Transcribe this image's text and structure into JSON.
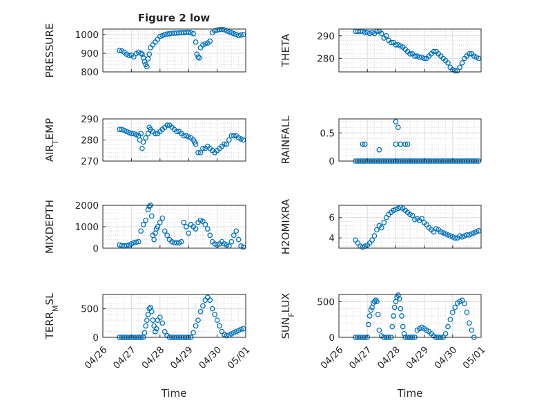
{
  "figure_title": "Figure 2 low",
  "xlabel": "Time",
  "x_tick_labels": [
    "04/26",
    "04/27",
    "04/28",
    "04/29",
    "04/30",
    "05/01"
  ],
  "marker_color": "#0072BD",
  "chart_data": [
    {
      "type": "scatter",
      "name": "PRESSURE",
      "ylabel": "PRESSURE",
      "title": "Figure 2 low",
      "xlim": [
        "2014-04-26",
        "2014-05-01"
      ],
      "ylim": [
        800,
        1030
      ],
      "yticks": [
        800,
        900,
        1000
      ],
      "grid": true,
      "x": [
        "04-26 14:00",
        "04-26 16:00",
        "04-26 18:00",
        "04-26 20:00",
        "04-26 22:00",
        "04-27 00:00",
        "04-27 02:00",
        "04-27 04:00",
        "04-27 06:00",
        "04-27 08:00",
        "04-27 09:00",
        "04-27 10:00",
        "04-27 11:00",
        "04-27 12:00",
        "04-27 13:00",
        "04-27 14:00",
        "04-27 15:00",
        "04-27 16:00",
        "04-27 18:00",
        "04-27 20:00",
        "04-27 22:00",
        "04-28 00:00",
        "04-28 02:00",
        "04-28 04:00",
        "04-28 06:00",
        "04-28 08:00",
        "04-28 10:00",
        "04-28 12:00",
        "04-28 14:00",
        "04-28 16:00",
        "04-28 18:00",
        "04-28 20:00",
        "04-28 22:00",
        "04-29 00:00",
        "04-29 02:00",
        "04-29 04:00",
        "04-29 06:00",
        "04-29 07:00",
        "04-29 08:00",
        "04-29 09:00",
        "04-29 10:00",
        "04-29 12:00",
        "04-29 14:00",
        "04-29 16:00",
        "04-29 18:00",
        "04-29 20:00",
        "04-29 22:00",
        "04-30 00:00",
        "04-30 02:00",
        "04-30 04:00",
        "04-30 06:00",
        "04-30 08:00",
        "04-30 10:00",
        "04-30 12:00",
        "04-30 14:00",
        "04-30 16:00",
        "04-30 18:00",
        "04-30 20:00",
        "04-30 22:00"
      ],
      "y": [
        915,
        912,
        905,
        895,
        888,
        890,
        880,
        898,
        905,
        900,
        895,
        875,
        855,
        840,
        828,
        870,
        895,
        930,
        945,
        960,
        975,
        990,
        995,
        1000,
        1003,
        1005,
        1007,
        1008,
        1008,
        1009,
        1010,
        1010,
        1012,
        1012,
        1010,
        1005,
        960,
        895,
        880,
        875,
        930,
        945,
        950,
        955,
        965,
        1010,
        1020,
        1025,
        1027,
        1028,
        1026,
        1020,
        1015,
        1010,
        1005,
        1000,
        995,
        998,
        1000
      ]
    },
    {
      "type": "scatter",
      "name": "THETA",
      "ylabel": "THETA",
      "xlim": [
        "2014-04-26",
        "2014-05-01"
      ],
      "ylim": [
        274,
        293
      ],
      "yticks": [
        280,
        290
      ],
      "grid": true,
      "x": [
        "04-26 14:00",
        "04-26 16:00",
        "04-26 18:00",
        "04-26 20:00",
        "04-26 22:00",
        "04-27 00:00",
        "04-27 02:00",
        "04-27 04:00",
        "04-27 06:00",
        "04-27 08:00",
        "04-27 10:00",
        "04-27 12:00",
        "04-27 14:00",
        "04-27 16:00",
        "04-27 18:00",
        "04-27 20:00",
        "04-27 22:00",
        "04-28 00:00",
        "04-28 02:00",
        "04-28 04:00",
        "04-28 06:00",
        "04-28 08:00",
        "04-28 10:00",
        "04-28 12:00",
        "04-28 14:00",
        "04-28 16:00",
        "04-28 18:00",
        "04-28 20:00",
        "04-28 22:00",
        "04-29 00:00",
        "04-29 02:00",
        "04-29 04:00",
        "04-29 06:00",
        "04-29 08:00",
        "04-29 10:00",
        "04-29 12:00",
        "04-29 14:00",
        "04-29 16:00",
        "04-29 18:00",
        "04-29 20:00",
        "04-29 22:00",
        "04-30 00:00",
        "04-30 02:00",
        "04-30 04:00",
        "04-30 06:00",
        "04-30 08:00",
        "04-30 10:00",
        "04-30 12:00",
        "04-30 14:00",
        "04-30 16:00",
        "04-30 18:00",
        "04-30 20:00",
        "04-30 22:00"
      ],
      "y": [
        292,
        292,
        292,
        292,
        291.5,
        291.5,
        291,
        291.5,
        291,
        292,
        292,
        291,
        289,
        290,
        288,
        287,
        287,
        286,
        286,
        285.5,
        285,
        284,
        283,
        282,
        282,
        281,
        281,
        280.5,
        280.5,
        280,
        280,
        281,
        282,
        283,
        283,
        282,
        281,
        280,
        279,
        278,
        276,
        275,
        274.5,
        274.5,
        276,
        278,
        280,
        281,
        282,
        282,
        281,
        280.5,
        280
      ]
    },
    {
      "type": "scatter",
      "name": "AIR_TEMP",
      "ylabel": "AIR_TEMP",
      "xlim": [
        "2014-04-26",
        "2014-05-01"
      ],
      "ylim": [
        270,
        290
      ],
      "yticks": [
        270,
        280,
        290
      ],
      "grid": true,
      "x": [
        "04-26 14:00",
        "04-26 16:00",
        "04-26 18:00",
        "04-26 20:00",
        "04-26 22:00",
        "04-27 00:00",
        "04-27 02:00",
        "04-27 04:00",
        "04-27 06:00",
        "04-27 07:00",
        "04-27 08:00",
        "04-27 09:00",
        "04-27 10:00",
        "04-27 12:00",
        "04-27 14:00",
        "04-27 15:00",
        "04-27 16:00",
        "04-27 18:00",
        "04-27 20:00",
        "04-27 22:00",
        "04-28 00:00",
        "04-28 02:00",
        "04-28 04:00",
        "04-28 06:00",
        "04-28 08:00",
        "04-28 10:00",
        "04-28 12:00",
        "04-28 14:00",
        "04-28 16:00",
        "04-28 18:00",
        "04-28 20:00",
        "04-28 22:00",
        "04-29 00:00",
        "04-29 02:00",
        "04-29 04:00",
        "04-29 05:00",
        "04-29 06:00",
        "04-29 08:00",
        "04-29 10:00",
        "04-29 12:00",
        "04-29 14:00",
        "04-29 16:00",
        "04-29 18:00",
        "04-29 20:00",
        "04-29 22:00",
        "04-30 00:00",
        "04-30 02:00",
        "04-30 04:00",
        "04-30 06:00",
        "04-30 08:00",
        "04-30 10:00",
        "04-30 12:00",
        "04-30 14:00",
        "04-30 16:00",
        "04-30 18:00",
        "04-30 20:00",
        "04-30 22:00"
      ],
      "y": [
        285,
        285,
        284.5,
        284,
        283.5,
        283,
        283,
        282.5,
        282,
        280,
        283,
        276,
        279,
        281,
        283,
        286,
        285,
        284,
        283,
        283,
        284,
        285,
        286,
        287,
        287,
        286,
        285,
        284,
        284,
        283,
        282,
        282,
        281.5,
        281,
        280,
        279,
        278,
        274,
        274,
        276,
        276,
        277,
        276,
        275,
        274,
        275,
        276,
        277,
        278,
        278,
        280,
        282,
        282,
        282,
        281,
        280.5,
        280
      ]
    },
    {
      "type": "scatter",
      "name": "RAINFALL",
      "ylabel": "RAINFALL",
      "xlim": [
        "2014-04-26",
        "2014-05-01"
      ],
      "ylim": [
        0,
        0.75
      ],
      "yticks": [
        0,
        0.5
      ],
      "grid": true,
      "x": [
        "04-26 14:00",
        "04-26 16:00",
        "04-26 18:00",
        "04-26 20:00",
        "04-26 22:00",
        "04-27 00:00",
        "04-27 02:00",
        "04-27 04:00",
        "04-27 06:00",
        "04-27 08:00",
        "04-27 10:00",
        "04-27 12:00",
        "04-27 14:00",
        "04-27 16:00",
        "04-27 18:00",
        "04-27 20:00",
        "04-27 22:00",
        "04-28 00:00",
        "04-28 02:00",
        "04-28 04:00",
        "04-28 06:00",
        "04-28 08:00",
        "04-28 10:00",
        "04-28 12:00",
        "04-28 14:00",
        "04-28 16:00",
        "04-28 18:00",
        "04-28 20:00",
        "04-28 22:00",
        "04-29 00:00",
        "04-29 02:00",
        "04-29 04:00",
        "04-29 06:00",
        "04-29 08:00",
        "04-29 10:00",
        "04-29 12:00",
        "04-29 14:00",
        "04-29 16:00",
        "04-29 18:00",
        "04-29 20:00",
        "04-29 22:00",
        "04-30 00:00",
        "04-30 02:00",
        "04-30 04:00",
        "04-30 06:00",
        "04-30 08:00",
        "04-30 10:00",
        "04-30 12:00",
        "04-30 14:00",
        "04-30 16:00",
        "04-30 18:00",
        "04-30 20:00",
        "04-30 22:00",
        "04-26 20:00",
        "04-26 22:00",
        "04-27 10:00",
        "04-28 00:00",
        "04-28 00:00",
        "04-28 02:00",
        "04-28 04:00",
        "04-28 04:00",
        "04-28 08:00",
        "04-28 10:00"
      ],
      "y": [
        0,
        0,
        0,
        0,
        0,
        0,
        0,
        0,
        0,
        0,
        0,
        0,
        0,
        0,
        0,
        0,
        0,
        0,
        0,
        0,
        0,
        0,
        0,
        0,
        0,
        0,
        0,
        0,
        0,
        0,
        0,
        0,
        0,
        0,
        0,
        0,
        0,
        0,
        0,
        0,
        0,
        0,
        0,
        0,
        0,
        0,
        0,
        0,
        0,
        0,
        0,
        0,
        0,
        0.3,
        0.3,
        0.2,
        0.7,
        0.3,
        0.6,
        0.3,
        0.3,
        0.3,
        0.3
      ]
    },
    {
      "type": "scatter",
      "name": "MIXDEPTH",
      "ylabel": "MIXDEPTH",
      "xlim": [
        "2014-04-26",
        "2014-05-01"
      ],
      "ylim": [
        0,
        2000
      ],
      "yticks": [
        0,
        1000,
        2000
      ],
      "grid": true,
      "x": [
        "04-26 14:00",
        "04-26 16:00",
        "04-26 18:00",
        "04-26 20:00",
        "04-26 22:00",
        "04-27 00:00",
        "04-27 02:00",
        "04-27 04:00",
        "04-27 06:00",
        "04-27 08:00",
        "04-27 10:00",
        "04-27 12:00",
        "04-27 14:00",
        "04-27 15:00",
        "04-27 16:00",
        "04-27 17:00",
        "04-27 18:00",
        "04-27 19:00",
        "04-27 20:00",
        "04-27 21:00",
        "04-27 22:00",
        "04-28 00:00",
        "04-28 02:00",
        "04-28 04:00",
        "04-28 06:00",
        "04-28 08:00",
        "04-28 10:00",
        "04-28 12:00",
        "04-28 14:00",
        "04-28 16:00",
        "04-28 18:00",
        "04-28 20:00",
        "04-28 22:00",
        "04-29 00:00",
        "04-29 02:00",
        "04-29 04:00",
        "04-29 06:00",
        "04-29 08:00",
        "04-29 10:00",
        "04-29 12:00",
        "04-29 14:00",
        "04-29 16:00",
        "04-29 18:00",
        "04-29 20:00",
        "04-29 22:00",
        "04-30 00:00",
        "04-30 02:00",
        "04-30 04:00",
        "04-30 06:00",
        "04-30 08:00",
        "04-30 10:00",
        "04-30 12:00",
        "04-30 14:00",
        "04-30 16:00",
        "04-30 18:00",
        "04-30 20:00",
        "04-30 22:00"
      ],
      "y": [
        150,
        120,
        100,
        120,
        150,
        200,
        250,
        280,
        300,
        800,
        1100,
        1300,
        1800,
        1950,
        2000,
        1500,
        600,
        400,
        700,
        900,
        1000,
        1200,
        1400,
        800,
        600,
        400,
        300,
        250,
        250,
        250,
        300,
        1200,
        1000,
        700,
        1100,
        1000,
        900,
        1200,
        1300,
        1250,
        1100,
        900,
        600,
        300,
        200,
        150,
        200,
        300,
        200,
        150,
        100,
        300,
        600,
        800,
        400,
        100,
        50
      ]
    },
    {
      "type": "scatter",
      "name": "H2OMIXRA",
      "ylabel": "H2OMIXRA",
      "xlim": [
        "2014-04-26",
        "2014-05-01"
      ],
      "ylim": [
        3,
        7.2
      ],
      "yticks": [
        4,
        6
      ],
      "grid": true,
      "x": [
        "04-26 14:00",
        "04-26 16:00",
        "04-26 18:00",
        "04-26 20:00",
        "04-26 22:00",
        "04-27 00:00",
        "04-27 02:00",
        "04-27 04:00",
        "04-27 06:00",
        "04-27 08:00",
        "04-27 10:00",
        "04-27 12:00",
        "04-27 14:00",
        "04-27 16:00",
        "04-27 18:00",
        "04-27 20:00",
        "04-27 22:00",
        "04-28 00:00",
        "04-28 02:00",
        "04-28 04:00",
        "04-28 06:00",
        "04-28 08:00",
        "04-28 10:00",
        "04-28 12:00",
        "04-28 14:00",
        "04-28 16:00",
        "04-28 18:00",
        "04-28 20:00",
        "04-28 22:00",
        "04-29 00:00",
        "04-29 02:00",
        "04-29 04:00",
        "04-29 06:00",
        "04-29 08:00",
        "04-29 10:00",
        "04-29 12:00",
        "04-29 14:00",
        "04-29 16:00",
        "04-29 18:00",
        "04-29 20:00",
        "04-29 22:00",
        "04-30 00:00",
        "04-30 02:00",
        "04-30 04:00",
        "04-30 06:00",
        "04-30 08:00",
        "04-30 10:00",
        "04-30 12:00",
        "04-30 14:00",
        "04-30 16:00",
        "04-30 18:00",
        "04-30 20:00",
        "04-30 22:00"
      ],
      "y": [
        3.8,
        3.5,
        3.2,
        3.1,
        3.2,
        3.3,
        3.5,
        3.8,
        4.2,
        4.8,
        5.2,
        5.0,
        5.5,
        6.0,
        6.3,
        6.5,
        6.7,
        6.8,
        6.9,
        7.0,
        6.9,
        6.7,
        6.5,
        6.3,
        6.2,
        5.8,
        5.9,
        5.7,
        5.9,
        5.5,
        5.3,
        5.0,
        4.8,
        4.6,
        4.9,
        4.8,
        4.6,
        4.5,
        4.4,
        4.3,
        4.2,
        4.1,
        4.0,
        4.0,
        4.2,
        4.1,
        4.2,
        4.3,
        4.3,
        4.4,
        4.5,
        4.6,
        4.7
      ]
    },
    {
      "type": "scatter",
      "name": "TERR_MSL",
      "ylabel": "TERR_MSL",
      "xlim": [
        "2014-04-26",
        "2014-05-01"
      ],
      "ylim": [
        0,
        750
      ],
      "yticks": [
        0,
        500
      ],
      "grid": true,
      "x": [
        "04-26 14:00",
        "04-26 16:00",
        "04-26 18:00",
        "04-26 20:00",
        "04-26 22:00",
        "04-27 00:00",
        "04-27 02:00",
        "04-27 04:00",
        "04-27 06:00",
        "04-27 08:00",
        "04-27 10:00",
        "04-27 11:00",
        "04-27 12:00",
        "04-27 13:00",
        "04-27 14:00",
        "04-27 15:00",
        "04-27 16:00",
        "04-27 17:00",
        "04-27 18:00",
        "04-27 19:00",
        "04-27 20:00",
        "04-27 21:00",
        "04-27 22:00",
        "04-28 00:00",
        "04-28 02:00",
        "04-28 04:00",
        "04-28 06:00",
        "04-28 08:00",
        "04-28 10:00",
        "04-28 12:00",
        "04-28 14:00",
        "04-28 16:00",
        "04-28 18:00",
        "04-28 20:00",
        "04-28 22:00",
        "04-29 00:00",
        "04-29 02:00",
        "04-29 04:00",
        "04-29 06:00",
        "04-29 08:00",
        "04-29 10:00",
        "04-29 12:00",
        "04-29 14:00",
        "04-29 16:00",
        "04-29 18:00",
        "04-29 20:00",
        "04-29 22:00",
        "04-30 00:00",
        "04-30 02:00",
        "04-30 04:00",
        "04-30 06:00",
        "04-30 08:00",
        "04-30 10:00",
        "04-30 12:00",
        "04-30 14:00",
        "04-30 16:00",
        "04-30 18:00",
        "04-30 20:00",
        "04-30 22:00"
      ],
      "y": [
        0,
        0,
        0,
        0,
        0,
        0,
        0,
        0,
        0,
        0,
        0,
        80,
        200,
        300,
        400,
        500,
        520,
        450,
        300,
        200,
        100,
        150,
        300,
        350,
        250,
        100,
        30,
        0,
        0,
        0,
        0,
        0,
        0,
        0,
        0,
        0,
        0,
        80,
        200,
        300,
        450,
        550,
        650,
        700,
        650,
        500,
        400,
        300,
        200,
        100,
        50,
        30,
        40,
        60,
        80,
        100,
        120,
        140,
        150
      ]
    },
    {
      "type": "scatter",
      "name": "SUN_FLUX",
      "ylabel": "SUN_FLUX",
      "xlim": [
        "2014-04-26",
        "2014-05-01"
      ],
      "ylim": [
        0,
        600
      ],
      "yticks": [
        0,
        500
      ],
      "grid": true,
      "x": [
        "04-26 14:00",
        "04-26 16:00",
        "04-26 18:00",
        "04-26 20:00",
        "04-26 22:00",
        "04-27 00:00",
        "04-27 01:00",
        "04-27 02:00",
        "04-27 03:00",
        "04-27 04:00",
        "04-27 05:00",
        "04-27 06:00",
        "04-27 07:00",
        "04-27 08:00",
        "04-27 09:00",
        "04-27 10:00",
        "04-27 12:00",
        "04-27 14:00",
        "04-27 16:00",
        "04-27 18:00",
        "04-27 20:00",
        "04-27 21:00",
        "04-27 22:00",
        "04-27 23:00",
        "04-28 00:00",
        "04-28 01:00",
        "04-28 02:00",
        "04-28 03:00",
        "04-28 04:00",
        "04-28 05:00",
        "04-28 06:00",
        "04-28 07:00",
        "04-28 08:00",
        "04-28 10:00",
        "04-28 12:00",
        "04-28 14:00",
        "04-28 16:00",
        "04-28 18:00",
        "04-28 20:00",
        "04-28 22:00",
        "04-29 00:00",
        "04-29 02:00",
        "04-29 04:00",
        "04-29 06:00",
        "04-29 08:00",
        "04-29 10:00",
        "04-29 12:00",
        "04-29 14:00",
        "04-29 16:00",
        "04-29 18:00",
        "04-29 20:00",
        "04-29 22:00",
        "04-30 00:00",
        "04-30 02:00",
        "04-30 04:00",
        "04-30 06:00",
        "04-30 08:00",
        "04-30 10:00",
        "04-30 12:00",
        "04-30 14:00",
        "04-30 16:00",
        "04-30 18:00"
      ],
      "y": [
        0,
        0,
        0,
        0,
        0,
        0,
        180,
        300,
        380,
        420,
        480,
        500,
        520,
        500,
        320,
        100,
        20,
        0,
        0,
        0,
        0,
        150,
        300,
        420,
        500,
        560,
        590,
        540,
        400,
        300,
        150,
        50,
        0,
        0,
        0,
        0,
        0,
        100,
        120,
        140,
        120,
        100,
        80,
        50,
        20,
        0,
        0,
        0,
        0,
        50,
        150,
        250,
        350,
        420,
        480,
        500,
        520,
        470,
        350,
        200,
        100,
        0
      ]
    }
  ]
}
